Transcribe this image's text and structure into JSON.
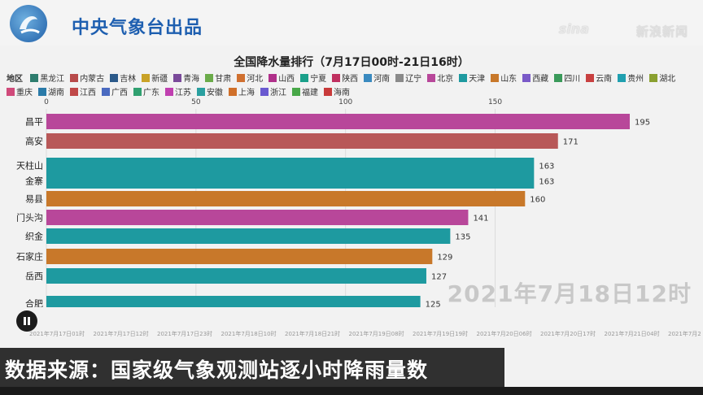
{
  "header": {
    "brand": "中央气象台出品",
    "watermark_logo": "sina",
    "watermark_text": "新浪新闻"
  },
  "legend": {
    "label": "地区",
    "items": [
      {
        "name": "黑龙江",
        "color": "#2e7d6e"
      },
      {
        "name": "内蒙古",
        "color": "#b84a4a"
      },
      {
        "name": "吉林",
        "color": "#2c5a8a"
      },
      {
        "name": "新疆",
        "color": "#c9a227"
      },
      {
        "name": "青海",
        "color": "#7a4a9a"
      },
      {
        "name": "甘肃",
        "color": "#6bab4a"
      },
      {
        "name": "河北",
        "color": "#d07030"
      },
      {
        "name": "山西",
        "color": "#b0308a"
      },
      {
        "name": "宁夏",
        "color": "#1aa08a"
      },
      {
        "name": "陕西",
        "color": "#c03060"
      },
      {
        "name": "河南",
        "color": "#3a8ac0"
      },
      {
        "name": "辽宁",
        "color": "#8a8a8a"
      },
      {
        "name": "北京",
        "color": "#b8479a"
      },
      {
        "name": "天津",
        "color": "#1e9aa0"
      },
      {
        "name": "山东",
        "color": "#c8782a"
      },
      {
        "name": "西藏",
        "color": "#7a5ac8"
      },
      {
        "name": "四川",
        "color": "#3a9a5a"
      },
      {
        "name": "云南",
        "color": "#c84040"
      },
      {
        "name": "贵州",
        "color": "#20a0b0"
      },
      {
        "name": "湖北",
        "color": "#8aa030"
      },
      {
        "name": "重庆",
        "color": "#d04a7a"
      },
      {
        "name": "湖南",
        "color": "#2a7aa8"
      },
      {
        "name": "江西",
        "color": "#c04848"
      },
      {
        "name": "广西",
        "color": "#4a6ac0"
      },
      {
        "name": "广东",
        "color": "#30a070"
      },
      {
        "name": "江苏",
        "color": "#c040b0"
      },
      {
        "name": "安徽",
        "color": "#2aa0a0"
      },
      {
        "name": "上海",
        "color": "#d0702a"
      },
      {
        "name": "浙江",
        "color": "#6a5ad0"
      },
      {
        "name": "福建",
        "color": "#48a848"
      },
      {
        "name": "海南",
        "color": "#c83a3a"
      }
    ]
  },
  "chart_data": {
    "type": "bar",
    "title": "全国降水量排行（7月17日00时-21日16时）",
    "orientation": "horizontal",
    "categories": [
      "昌平",
      "高安",
      "天柱山",
      "金寨",
      "易县",
      "门头沟",
      "织金",
      "石家庄",
      "岳西",
      "合肥"
    ],
    "values": [
      195,
      171,
      163,
      163,
      160,
      141,
      135,
      129,
      127,
      125
    ],
    "colors": [
      "#b8479a",
      "#b85858",
      "#1e9aa0",
      "#1e9aa0",
      "#c8782a",
      "#b8479a",
      "#1e9aa0",
      "#c8782a",
      "#1e9aa0",
      "#1e9aa0"
    ],
    "xticks": [
      0,
      50,
      100,
      150
    ],
    "xlim": [
      0,
      195
    ],
    "grid": true,
    "date_label": "2021年7月18日12时",
    "timeline_ticks": [
      "2021年7月17日01时",
      "2021年7月17日12时",
      "2021年7月17日23时",
      "2021年7月18日10时",
      "2021年7月18日21时",
      "2021年7月19日08时",
      "2021年7月19日19时",
      "2021年7月20日06时",
      "2021年7月20日17时",
      "2021年7月21日04时",
      "2021年7月2"
    ]
  },
  "caption": "数据来源：国家级气象观测站逐小时降雨量数"
}
